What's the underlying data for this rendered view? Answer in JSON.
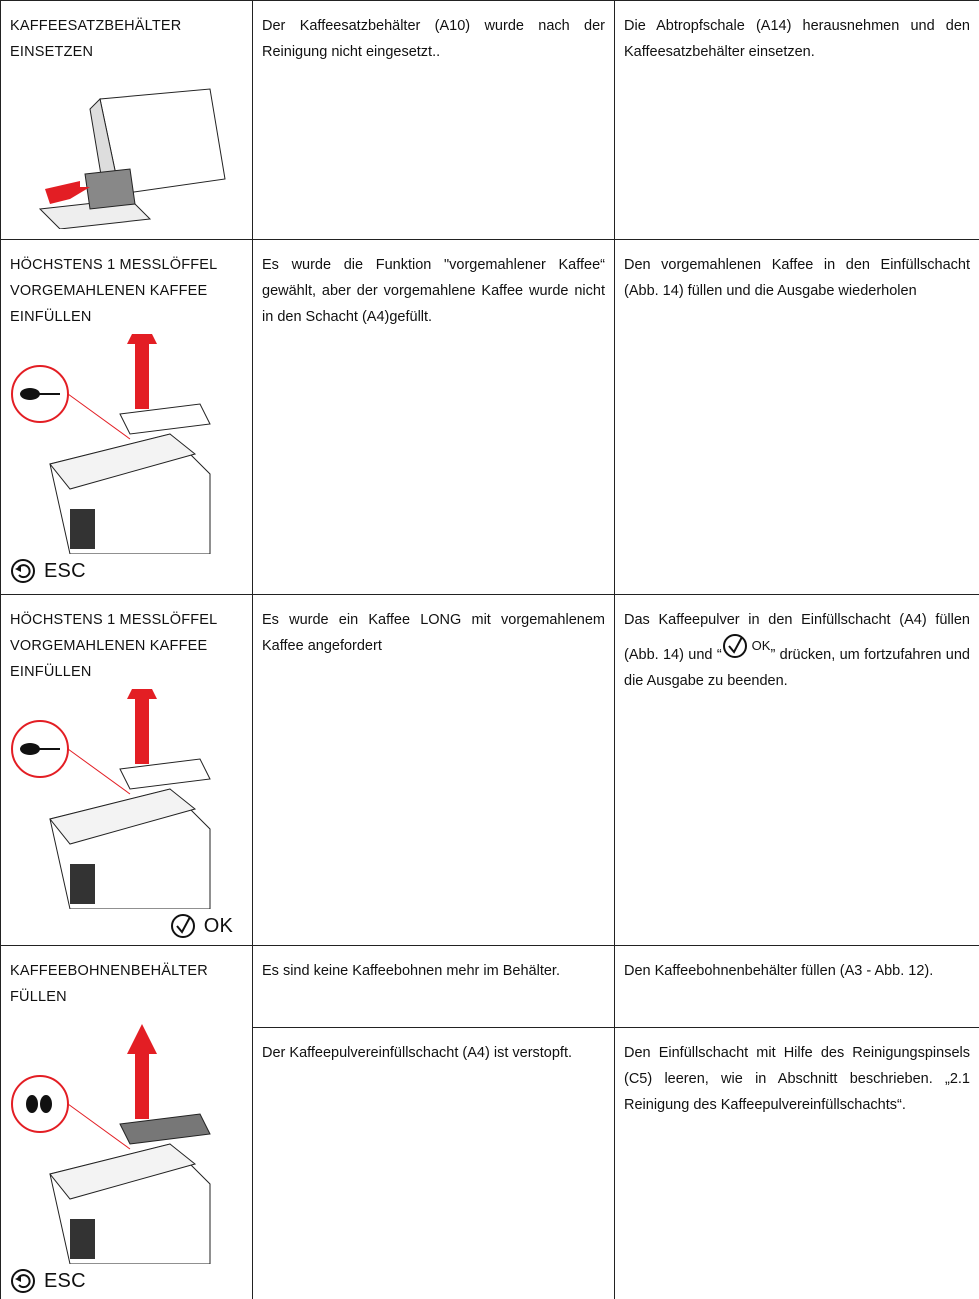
{
  "rows": [
    {
      "title": [
        "KAFFEESATZBEHÄLTER",
        "EINSETZEN"
      ],
      "items": [
        {
          "cause": "Der Kaffeesatzbehälter (A10) wurde nach der Reinigung nicht eingesetzt..",
          "solution": "Die Abtropfschale (A14) herausnehmen und den Kaffeesatzbehälter einsetzen."
        }
      ]
    },
    {
      "title": [
        "HÖCHSTENS 1 MESSLÖFFEL",
        "VORGEMAHLENEN KAFFEE",
        "EINFÜLLEN"
      ],
      "button": "ESC",
      "items": [
        {
          "cause": "Es wurde die Funktion \"vorgemahlener Kaffee“ gewählt, aber der vorgemahlene Kaffee wurde nicht in den Schacht  (A4)gefüllt.",
          "solution": "Den vorgemahlenen Kaffee in den Einfüllschacht (Abb. 14) füllen und die Ausgabe wiederholen"
        }
      ]
    },
    {
      "title": [
        "HÖCHSTENS 1 MESSLÖFFEL",
        " VORGEMAHLENEN KAFFEE",
        "EINFÜLLEN"
      ],
      "button": "OK",
      "items": [
        {
          "cause": "Es wurde ein Kaffee LONG mit vorgemahlenem Kaffee angefordert",
          "solution_before": "Das Kaffeepulver in den Einfüllschacht (A4) füllen (Abb. 14) und “",
          "solution_button": "OK",
          "solution_after": "” drücken, um fortzufahren und die Ausgabe zu beenden."
        }
      ]
    },
    {
      "title": [
        "KAFFEEBOHNENBEHÄLTER",
        "FÜLLEN"
      ],
      "button": "ESC",
      "items": [
        {
          "cause": "Es sind keine Kaffeebohnen mehr im Behälter.",
          "solution": "Den Kaffeebohnenbehälter füllen (A3 - Abb. 12)."
        },
        {
          "cause": "Der Kaffeepulvereinfüllschacht (A4) ist verstopft.",
          "solution": "Den Einfüllschacht mit Hilfe des Reinigungspinsels (C5) leeren, wie in Abschnitt beschrieben. „2.1 Reinigung des Kaffeepulvereinfüllschachts“."
        }
      ]
    }
  ]
}
